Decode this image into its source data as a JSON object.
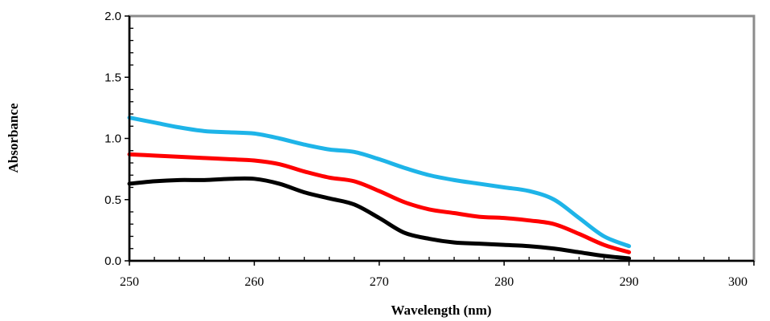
{
  "chart_data": {
    "type": "line",
    "xlabel": "Wavelength (nm)",
    "ylabel": "Absorbance",
    "xlim": [
      250,
      300
    ],
    "ylim": [
      0,
      2.0
    ],
    "x_ticks": [
      "250",
      "260",
      "270",
      "280",
      "290",
      "300"
    ],
    "y_ticks": [
      "0.0",
      "0.5",
      "1.0",
      "1.5",
      "2.0"
    ],
    "grid": false,
    "legend": "none",
    "series": [
      {
        "color": "#1eb4e8",
        "x": [
          250,
          252,
          254,
          256,
          258,
          260,
          262,
          264,
          266,
          268,
          270,
          272,
          274,
          276,
          278,
          280,
          282,
          284,
          286,
          288,
          290
        ],
        "y": [
          1.17,
          1.13,
          1.09,
          1.06,
          1.05,
          1.04,
          1.0,
          0.95,
          0.91,
          0.89,
          0.83,
          0.76,
          0.7,
          0.66,
          0.63,
          0.6,
          0.57,
          0.5,
          0.35,
          0.2,
          0.12
        ]
      },
      {
        "color": "#ff0000",
        "x": [
          250,
          252,
          254,
          256,
          258,
          260,
          262,
          264,
          266,
          268,
          270,
          272,
          274,
          276,
          278,
          280,
          282,
          284,
          286,
          288,
          290
        ],
        "y": [
          0.87,
          0.86,
          0.85,
          0.84,
          0.83,
          0.82,
          0.79,
          0.73,
          0.68,
          0.65,
          0.57,
          0.48,
          0.42,
          0.39,
          0.36,
          0.35,
          0.33,
          0.3,
          0.22,
          0.13,
          0.07
        ]
      },
      {
        "color": "#000000",
        "x": [
          250,
          252,
          254,
          256,
          258,
          260,
          262,
          264,
          266,
          268,
          270,
          272,
          274,
          276,
          278,
          280,
          282,
          284,
          286,
          288,
          290
        ],
        "y": [
          0.63,
          0.65,
          0.66,
          0.66,
          0.67,
          0.67,
          0.63,
          0.56,
          0.51,
          0.46,
          0.35,
          0.23,
          0.18,
          0.15,
          0.14,
          0.13,
          0.12,
          0.1,
          0.07,
          0.04,
          0.02
        ]
      }
    ]
  }
}
